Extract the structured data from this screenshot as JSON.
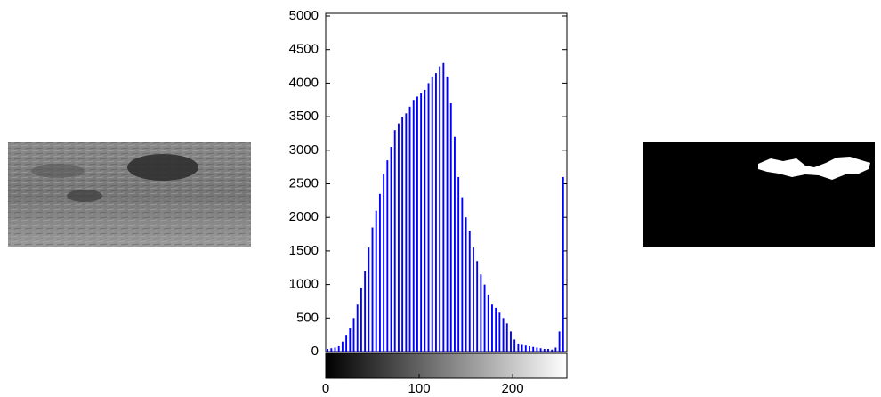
{
  "chart_data": {
    "type": "histogram",
    "color": "#0000ff",
    "bins": [
      0,
      4,
      8,
      12,
      16,
      20,
      24,
      28,
      32,
      36,
      40,
      44,
      48,
      52,
      56,
      60,
      64,
      68,
      72,
      76,
      80,
      84,
      88,
      92,
      96,
      100,
      104,
      108,
      112,
      116,
      120,
      124,
      128,
      132,
      136,
      140,
      144,
      148,
      152,
      156,
      160,
      164,
      168,
      172,
      176,
      180,
      184,
      188,
      192,
      196,
      200,
      204,
      208,
      212,
      216,
      220,
      224,
      228,
      232,
      236,
      240,
      244,
      248,
      252,
      256
    ],
    "values": [
      40,
      50,
      60,
      80,
      150,
      250,
      350,
      500,
      700,
      950,
      1200,
      1550,
      1850,
      2100,
      2350,
      2650,
      2850,
      3050,
      3300,
      3400,
      3500,
      3550,
      3650,
      3750,
      3800,
      3850,
      3900,
      4000,
      4100,
      4150,
      4250,
      4300,
      4100,
      3700,
      3200,
      2600,
      2300,
      2000,
      1800,
      1550,
      1350,
      1150,
      1000,
      850,
      700,
      650,
      580,
      500,
      420,
      300,
      180,
      120,
      100,
      90,
      80,
      70,
      60,
      50,
      40,
      40,
      30,
      60,
      300,
      2600
    ],
    "xlim": [
      0,
      258
    ],
    "xticks": [
      0,
      100,
      200
    ],
    "ylim": [
      0,
      5000
    ],
    "yticks": [
      0,
      500,
      1000,
      1500,
      2000,
      2500,
      3000,
      3500,
      4000,
      4500,
      5000
    ]
  }
}
